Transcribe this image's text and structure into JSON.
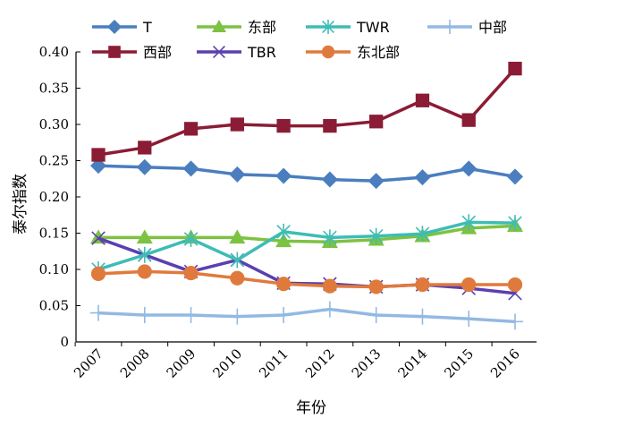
{
  "chart_data": {
    "type": "line",
    "xlabel": "年份",
    "ylabel": "泰尔指数",
    "ylim": [
      0,
      0.4
    ],
    "yticks": [
      "0",
      "0.05",
      "0.10",
      "0.15",
      "0.20",
      "0.25",
      "0.30",
      "0.35",
      "0.40"
    ],
    "categories": [
      "2007",
      "2008",
      "2009",
      "2010",
      "2011",
      "2012",
      "2013",
      "2014",
      "2015",
      "2016"
    ],
    "grid": false,
    "legend_position": "top",
    "series": [
      {
        "name": "T",
        "color": "#4a7ebf",
        "marker": "diamond",
        "values": [
          0.243,
          0.241,
          0.239,
          0.231,
          0.229,
          0.224,
          0.222,
          0.227,
          0.239,
          0.228
        ]
      },
      {
        "name": "西部",
        "color": "#8b1c35",
        "marker": "square",
        "values": [
          0.258,
          0.268,
          0.294,
          0.3,
          0.298,
          0.298,
          0.304,
          0.333,
          0.306,
          0.377
        ]
      },
      {
        "name": "东部",
        "color": "#7dc242",
        "marker": "triangle",
        "values": [
          0.144,
          0.144,
          0.144,
          0.144,
          0.139,
          0.138,
          0.141,
          0.146,
          0.157,
          0.16
        ]
      },
      {
        "name": "TBR",
        "color": "#5b3fb0",
        "marker": "x",
        "values": [
          0.143,
          0.12,
          0.097,
          0.113,
          0.081,
          0.08,
          0.076,
          0.079,
          0.074,
          0.067
        ]
      },
      {
        "name": "TWR",
        "color": "#3ebcb5",
        "marker": "asterisk",
        "values": [
          0.1,
          0.12,
          0.142,
          0.113,
          0.152,
          0.144,
          0.146,
          0.149,
          0.165,
          0.164
        ]
      },
      {
        "name": "东北部",
        "color": "#e07a3c",
        "marker": "circle",
        "values": [
          0.094,
          0.097,
          0.095,
          0.088,
          0.08,
          0.077,
          0.076,
          0.079,
          0.079,
          0.079
        ]
      },
      {
        "name": "中部",
        "color": "#93b9e3",
        "marker": "plus",
        "values": [
          0.04,
          0.037,
          0.037,
          0.035,
          0.037,
          0.045,
          0.037,
          0.035,
          0.032,
          0.028
        ]
      }
    ]
  }
}
